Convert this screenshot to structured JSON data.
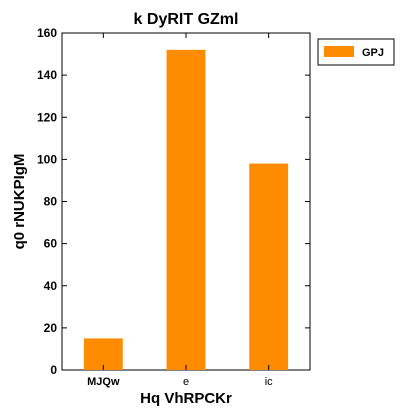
{
  "chart_data": {
    "type": "bar",
    "title": "k  DyRIT GZml",
    "xlabel": "Hq VhRPCKr",
    "ylabel": "q0  rNUKPIgM",
    "categories": [
      "MJQw",
      "e",
      "ic"
    ],
    "series": [
      {
        "name": "GPJ",
        "values": [
          15,
          152,
          98
        ],
        "color": "#ff8c00"
      }
    ],
    "ylim": [
      0,
      160
    ],
    "yticks": [
      0,
      20,
      40,
      60,
      80,
      100,
      120,
      140,
      160
    ],
    "grid": false,
    "legend_position": "outside-top-right"
  }
}
